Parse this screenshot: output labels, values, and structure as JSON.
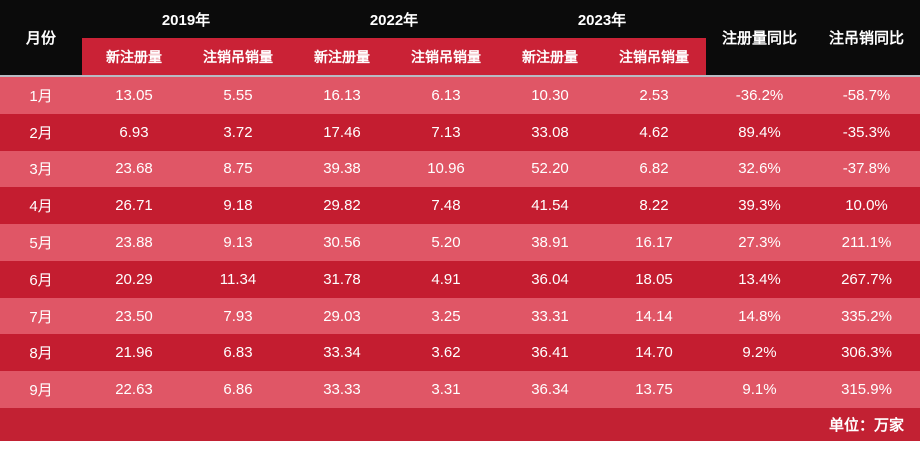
{
  "header": {
    "month_col_label": "月份",
    "year_groups": [
      {
        "year_label": "2019年",
        "sub_labels": [
          "新注册量",
          "注销吊销量"
        ]
      },
      {
        "year_label": "2022年",
        "sub_labels": [
          "新注册量",
          "注销吊销量"
        ]
      },
      {
        "year_label": "2023年",
        "sub_labels": [
          "新注册量",
          "注销吊销量"
        ]
      }
    ],
    "yoy_labels": [
      "注册量同比",
      "注吊销同比"
    ]
  },
  "rows": [
    {
      "month": "1月",
      "values": [
        "13.05",
        "5.55",
        "16.13",
        "6.13",
        "10.30",
        "2.53",
        "-36.2%",
        "-58.7%"
      ]
    },
    {
      "month": "2月",
      "values": [
        "6.93",
        "3.72",
        "17.46",
        "7.13",
        "33.08",
        "4.62",
        "89.4%",
        "-35.3%"
      ]
    },
    {
      "month": "3月",
      "values": [
        "23.68",
        "8.75",
        "39.38",
        "10.96",
        "52.20",
        "6.82",
        "32.6%",
        "-37.8%"
      ]
    },
    {
      "month": "4月",
      "values": [
        "26.71",
        "9.18",
        "29.82",
        "7.48",
        "41.54",
        "8.22",
        "39.3%",
        "10.0%"
      ]
    },
    {
      "month": "5月",
      "values": [
        "23.88",
        "9.13",
        "30.56",
        "5.20",
        "38.91",
        "16.17",
        "27.3%",
        "211.1%"
      ]
    },
    {
      "month": "6月",
      "values": [
        "20.29",
        "11.34",
        "31.78",
        "4.91",
        "36.04",
        "18.05",
        "13.4%",
        "267.7%"
      ]
    },
    {
      "month": "7月",
      "values": [
        "23.50",
        "7.93",
        "29.03",
        "3.25",
        "33.31",
        "14.14",
        "14.8%",
        "335.2%"
      ]
    },
    {
      "month": "8月",
      "values": [
        "21.96",
        "6.83",
        "33.34",
        "3.62",
        "36.41",
        "14.70",
        "9.2%",
        "306.3%"
      ]
    },
    {
      "month": "9月",
      "values": [
        "22.63",
        "6.86",
        "33.33",
        "3.31",
        "36.34",
        "13.75",
        "9.1%",
        "315.9%"
      ]
    }
  ],
  "footer": {
    "unit_label": "单位：万家"
  },
  "colors": {
    "header_bg": "#0b0b0b",
    "subheader_red": "#ca2236",
    "row_light": "#e05666",
    "row_dark": "#c41d30",
    "footer_red": "#c22133",
    "separator": "#b8bbc3",
    "text": "#ffffff"
  },
  "chart_data": {
    "type": "table",
    "title": "月度新注册量与注销吊销量对比表",
    "unit": "万家",
    "categories": [
      "1月",
      "2月",
      "3月",
      "4月",
      "5月",
      "6月",
      "7月",
      "8月",
      "9月"
    ],
    "series": [
      {
        "name": "2019年 新注册量",
        "values": [
          13.05,
          6.93,
          23.68,
          26.71,
          23.88,
          20.29,
          23.5,
          21.96,
          22.63
        ]
      },
      {
        "name": "2019年 注销吊销量",
        "values": [
          5.55,
          3.72,
          8.75,
          9.18,
          9.13,
          11.34,
          7.93,
          6.83,
          6.86
        ]
      },
      {
        "name": "2022年 新注册量",
        "values": [
          16.13,
          17.46,
          39.38,
          29.82,
          30.56,
          31.78,
          29.03,
          33.34,
          33.33
        ]
      },
      {
        "name": "2022年 注销吊销量",
        "values": [
          6.13,
          7.13,
          10.96,
          7.48,
          5.2,
          4.91,
          3.25,
          3.62,
          3.31
        ]
      },
      {
        "name": "2023年 新注册量",
        "values": [
          10.3,
          33.08,
          52.2,
          41.54,
          38.91,
          36.04,
          33.31,
          36.41,
          36.34
        ]
      },
      {
        "name": "2023年 注销吊销量",
        "values": [
          2.53,
          4.62,
          6.82,
          8.22,
          16.17,
          18.05,
          14.14,
          14.7,
          13.75
        ]
      },
      {
        "name": "注册量同比",
        "values": [
          "-36.2%",
          "89.4%",
          "32.6%",
          "39.3%",
          "27.3%",
          "13.4%",
          "14.8%",
          "9.2%",
          "9.1%"
        ]
      },
      {
        "name": "注吊销同比",
        "values": [
          "-58.7%",
          "-35.3%",
          "-37.8%",
          "10.0%",
          "211.1%",
          "267.7%",
          "335.2%",
          "306.3%",
          "315.9%"
        ]
      }
    ],
    "legend_position": "none",
    "grid": false
  }
}
